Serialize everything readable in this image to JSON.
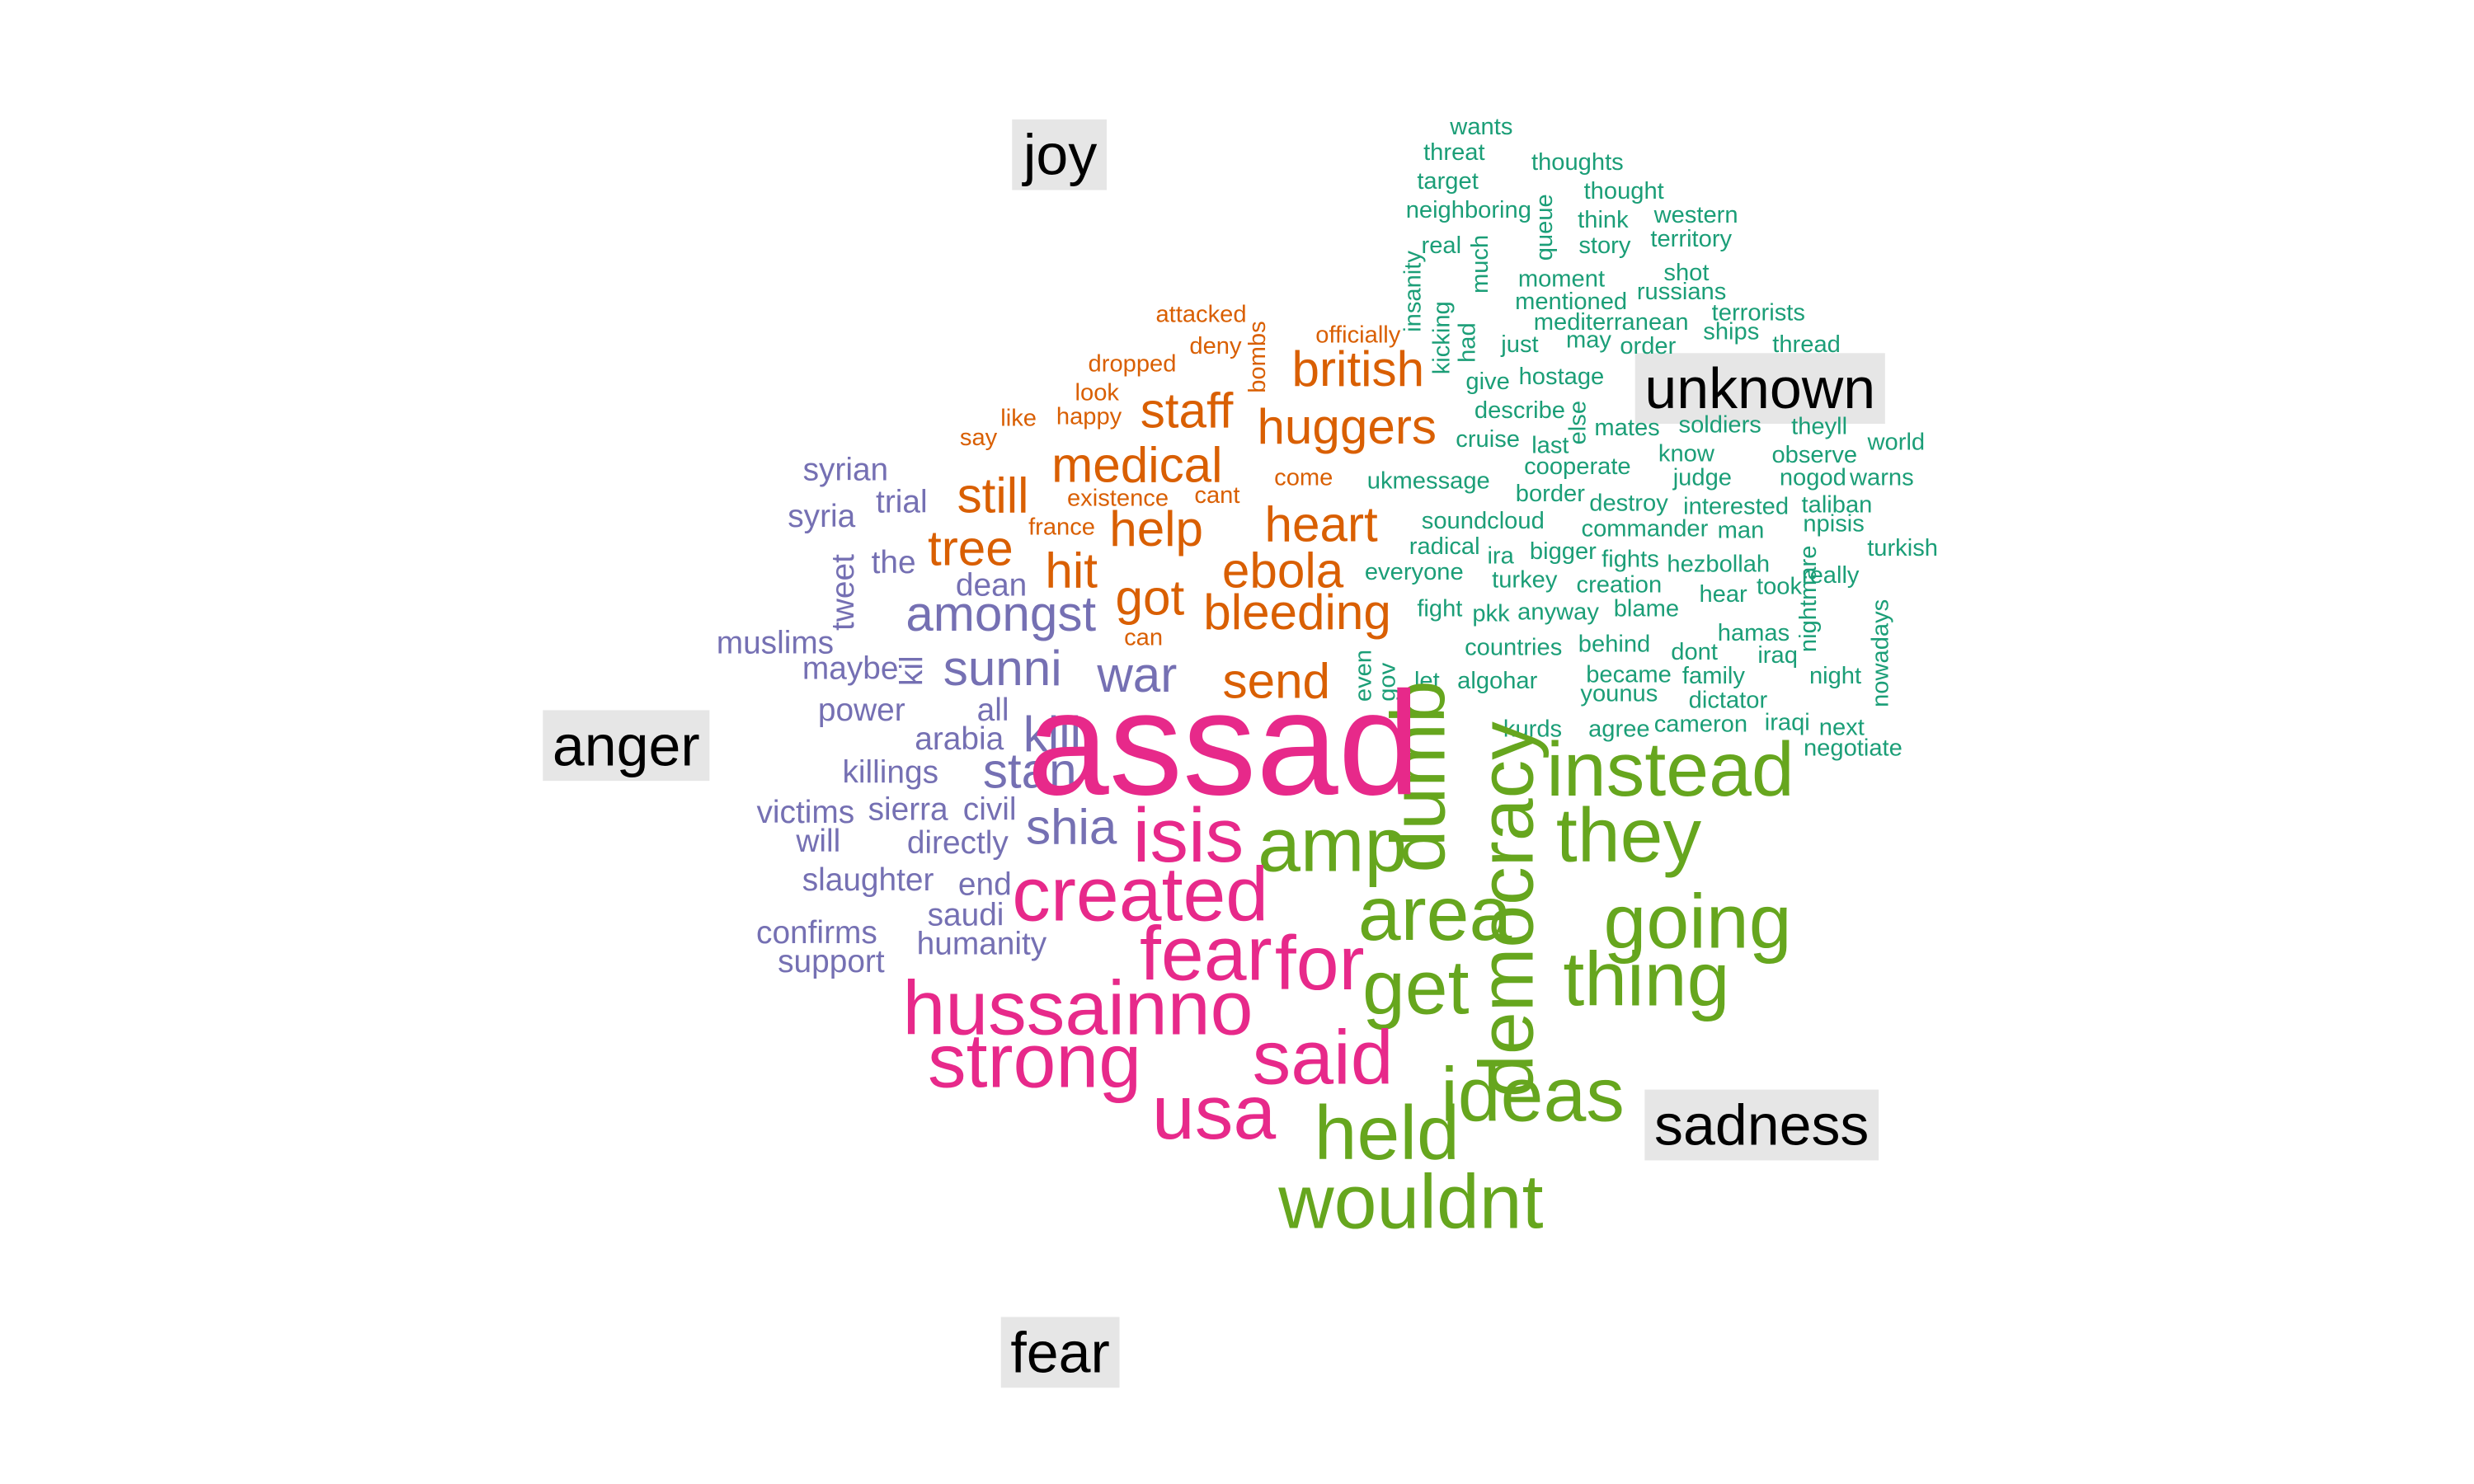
{
  "categories": [
    {
      "label": "joy",
      "color": "#d95f02"
    },
    {
      "label": "unknown",
      "color": "#1b9e77"
    },
    {
      "label": "anger",
      "color": "#7570b3"
    },
    {
      "label": "sadness",
      "color": "#66a61e"
    },
    {
      "label": "fear",
      "color": "#e7298a"
    }
  ],
  "groups": {
    "joy": [
      "attacked",
      "officially",
      "deny",
      "bombs",
      "dropped",
      "british",
      "look",
      "happy",
      "staff",
      "like",
      "say",
      "huggers",
      "medical",
      "come",
      "still",
      "existence",
      "cant",
      "help",
      "heart",
      "tree",
      "france",
      "hit",
      "ebola",
      "got",
      "bleeding",
      "can",
      "send"
    ],
    "unknown": [
      "wants",
      "threat",
      "thoughts",
      "target",
      "thought",
      "neighboring",
      "queue",
      "western",
      "real",
      "much",
      "think",
      "story",
      "territory",
      "insanity",
      "shot",
      "moment",
      "russians",
      "mentioned",
      "kicking",
      "terrorists",
      "had",
      "mediterranean",
      "ships",
      "just",
      "may",
      "order",
      "thread",
      "give",
      "hostage",
      "describe",
      "cruise",
      "last",
      "else",
      "mates",
      "soldiers",
      "theyll",
      "world",
      "cooperate",
      "know",
      "observe",
      "ukmessage",
      "judge",
      "nogod",
      "warns",
      "border",
      "destroy",
      "interested",
      "taliban",
      "soundcloud",
      "commander",
      "man",
      "npisis",
      "radical",
      "ira",
      "bigger",
      "fights",
      "hezbollah",
      "turkish",
      "everyone",
      "turkey",
      "creation",
      "took",
      "really",
      "nightmare",
      "fight",
      "pkk",
      "anyway",
      "blame",
      "hear",
      "nowadays",
      "hamas",
      "countries",
      "behind",
      "dont",
      "iraq",
      "even",
      "gov",
      "let",
      "algohar",
      "became",
      "family",
      "night",
      "younus",
      "dictator",
      "kurds",
      "agree",
      "cameron",
      "iraqi",
      "next",
      "negotiate"
    ],
    "anger": [
      "syrian",
      "syria",
      "trial",
      "the",
      "tweet",
      "dean",
      "amongst",
      "muslims",
      "maybe",
      "kil",
      "sunni",
      "war",
      "power",
      "all",
      "arabia",
      "kill",
      "killings",
      "stan",
      "victims",
      "sierra",
      "civil",
      "will",
      "directly",
      "shia",
      "slaughter",
      "end",
      "saudi",
      "confirms",
      "humanity",
      "support"
    ],
    "sadness": [
      "dumb",
      "democracy",
      "instead",
      "they",
      "amp",
      "area",
      "going",
      "get",
      "thing",
      "ideas",
      "held",
      "wouldnt"
    ],
    "fear": [
      "assad",
      "isis",
      "created",
      "fear",
      "for",
      "hussainno",
      "strong",
      "said",
      "usa"
    ]
  }
}
